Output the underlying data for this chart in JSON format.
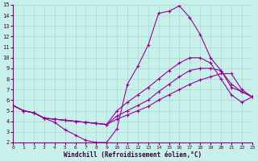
{
  "xlabel": "Windchill (Refroidissement éolien,°C)",
  "bg_color": "#c8f0ea",
  "grid_color": "#a8d8d0",
  "line_color": "#990099",
  "xlim": [
    0,
    23
  ],
  "ylim": [
    2,
    15
  ],
  "xticks": [
    0,
    1,
    2,
    3,
    4,
    5,
    6,
    7,
    8,
    9,
    10,
    11,
    12,
    13,
    14,
    15,
    16,
    17,
    18,
    19,
    20,
    21,
    22,
    23
  ],
  "yticks": [
    2,
    3,
    4,
    5,
    6,
    7,
    8,
    9,
    10,
    11,
    12,
    13,
    14,
    15
  ],
  "line1_x": [
    0,
    1,
    2,
    3,
    4,
    5,
    6,
    7,
    8,
    9,
    10,
    11,
    12,
    13,
    14,
    15,
    16,
    17,
    18,
    19,
    20,
    21,
    22,
    23
  ],
  "line1_y": [
    5.5,
    5.0,
    4.8,
    4.3,
    3.9,
    3.2,
    2.7,
    2.2,
    2.0,
    2.0,
    3.3,
    7.5,
    9.2,
    11.2,
    14.2,
    14.4,
    14.9,
    13.8,
    12.2,
    10.0,
    8.8,
    7.2,
    6.8,
    6.3
  ],
  "line2_x": [
    0,
    1,
    2,
    3,
    4,
    5,
    6,
    7,
    8,
    9,
    10,
    11,
    12,
    13,
    14,
    15,
    16,
    17,
    18,
    19,
    20,
    21,
    22,
    23
  ],
  "line2_y": [
    5.5,
    5.0,
    4.8,
    4.3,
    4.2,
    4.1,
    4.0,
    3.9,
    3.8,
    3.7,
    5.0,
    5.8,
    6.5,
    7.2,
    8.0,
    8.8,
    9.5,
    10.0,
    10.0,
    9.5,
    8.0,
    6.5,
    5.8,
    6.3
  ],
  "line3_x": [
    0,
    1,
    2,
    3,
    4,
    5,
    6,
    7,
    8,
    9,
    10,
    11,
    12,
    13,
    14,
    15,
    16,
    17,
    18,
    19,
    20,
    21,
    22,
    23
  ],
  "line3_y": [
    5.5,
    5.0,
    4.8,
    4.3,
    4.2,
    4.1,
    4.0,
    3.9,
    3.8,
    3.7,
    4.5,
    5.0,
    5.5,
    6.0,
    6.8,
    7.5,
    8.2,
    8.8,
    9.0,
    9.0,
    8.8,
    7.5,
    6.8,
    6.3
  ],
  "line4_x": [
    0,
    1,
    2,
    3,
    4,
    5,
    6,
    7,
    8,
    9,
    10,
    11,
    12,
    13,
    14,
    15,
    16,
    17,
    18,
    19,
    20,
    21,
    22,
    23
  ],
  "line4_y": [
    5.5,
    5.0,
    4.8,
    4.3,
    4.2,
    4.1,
    4.0,
    3.9,
    3.8,
    3.7,
    4.2,
    4.6,
    5.0,
    5.4,
    6.0,
    6.5,
    7.0,
    7.5,
    7.9,
    8.2,
    8.5,
    8.5,
    7.0,
    6.3
  ]
}
